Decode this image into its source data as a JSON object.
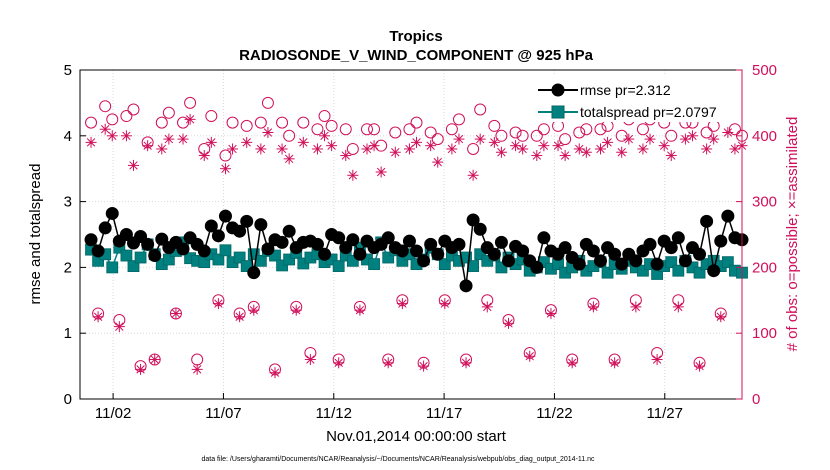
{
  "chart_data": {
    "type": "line",
    "title": "Tropics",
    "subtitle": "RADIOSONDE_V_WIND_COMPONENT @ 925 hPa",
    "xlabel": "Nov.01,2014 00:00:00 start",
    "ylabel": "rmse and totalspread",
    "y2label": "# of obs: o=possible; ×=assimilated",
    "xlim": [
      0.5,
      30.5
    ],
    "ylim": [
      0,
      5
    ],
    "y2lim": [
      0,
      500
    ],
    "x_ticks": [
      {
        "x": 2,
        "label": "11/02"
      },
      {
        "x": 7,
        "label": "11/07"
      },
      {
        "x": 12,
        "label": "11/12"
      },
      {
        "x": 17,
        "label": "11/17"
      },
      {
        "x": 22,
        "label": "11/22"
      },
      {
        "x": 27,
        "label": "11/27"
      }
    ],
    "y_ticks": [
      "0",
      "1",
      "2",
      "3",
      "4",
      "5"
    ],
    "y2_ticks": [
      "0",
      "100",
      "200",
      "300",
      "400",
      "500"
    ],
    "legend_position": "top-right",
    "series": [
      {
        "name": "rmse",
        "legend": "rmse pr=2.312",
        "axis": "left",
        "marker": "filled-circle",
        "color": "#000000",
        "values": [
          2.42,
          2.25,
          2.6,
          2.82,
          2.4,
          2.5,
          2.37,
          2.47,
          2.35,
          2.18,
          2.43,
          2.3,
          2.38,
          2.28,
          2.45,
          2.35,
          2.25,
          2.63,
          2.48,
          2.78,
          2.6,
          2.55,
          2.7,
          1.92,
          2.65,
          2.28,
          2.42,
          2.38,
          2.55,
          2.3,
          2.38,
          2.4,
          2.35,
          2.2,
          2.5,
          2.45,
          2.3,
          2.42,
          2.2,
          2.4,
          2.3,
          2.35,
          2.45,
          2.3,
          2.25,
          2.4,
          2.25,
          2.1,
          2.35,
          2.2,
          2.4,
          2.3,
          2.35,
          1.72,
          2.72,
          2.58,
          2.3,
          2.2,
          2.38,
          2.1,
          2.32,
          2.25,
          2.1,
          2.0,
          2.45,
          2.25,
          2.2,
          2.3,
          2.15,
          2.05,
          2.35,
          2.25,
          2.1,
          2.3,
          2.2,
          2.05,
          2.2,
          2.1,
          2.25,
          2.35,
          2.05,
          2.4,
          2.3,
          2.45,
          2.1,
          2.3,
          2.2,
          2.7,
          1.95,
          2.4,
          2.78,
          2.45,
          2.42
        ]
      },
      {
        "name": "totalspread",
        "legend": "totalspread pr=2.0797",
        "axis": "left",
        "marker": "filled-square",
        "color": "#00807f",
        "values": [
          2.27,
          2.1,
          2.2,
          2.0,
          2.3,
          2.18,
          2.02,
          2.15,
          2.35,
          2.2,
          2.05,
          2.12,
          2.25,
          2.38,
          2.14,
          2.1,
          2.08,
          2.2,
          2.12,
          2.26,
          2.08,
          2.15,
          2.02,
          2.2,
          2.1,
          2.25,
          2.18,
          2.03,
          2.12,
          2.22,
          2.06,
          2.15,
          2.2,
          2.08,
          2.12,
          2.02,
          2.18,
          2.1,
          2.3,
          2.12,
          2.05,
          2.38,
          2.15,
          2.26,
          2.1,
          2.2,
          2.05,
          2.12,
          2.3,
          2.2,
          2.05,
          2.18,
          2.1,
          2.15,
          2.02,
          2.2,
          2.1,
          2.18,
          2.0,
          2.15,
          2.05,
          2.12,
          1.95,
          2.0,
          2.08,
          1.98,
          2.05,
          1.92,
          2.0,
          2.1,
          1.95,
          2.02,
          2.08,
          1.92,
          2.05,
          1.98,
          2.1,
          2.0,
          1.95,
          2.05,
          1.9,
          2.02,
          2.08,
          1.95,
          2.1,
          2.0,
          1.92,
          2.05,
          2.1,
          2.02,
          2.08,
          1.95,
          1.92
        ]
      },
      {
        "name": "obs possible",
        "axis": "right",
        "marker": "open-circle",
        "color": "#d0105a",
        "values": [
          420,
          130,
          445,
          425,
          120,
          430,
          440,
          50,
          390,
          60,
          420,
          435,
          130,
          420,
          450,
          60,
          380,
          430,
          150,
          370,
          420,
          130,
          415,
          140,
          420,
          450,
          45,
          420,
          400,
          140,
          420,
          70,
          410,
          430,
          415,
          60,
          410,
          380,
          140,
          410,
          410,
          385,
          60,
          405,
          150,
          410,
          420,
          55,
          405,
          395,
          150,
          410,
          425,
          60,
          380,
          440,
          150,
          415,
          400,
          120,
          405,
          400,
          70,
          400,
          410,
          135,
          415,
          395,
          60,
          405,
          410,
          145,
          410,
          415,
          60,
          400,
          425,
          150,
          410,
          425,
          70,
          420,
          400,
          150,
          420,
          420,
          55,
          405,
          415,
          130,
          440,
          410,
          400
        ]
      },
      {
        "name": "obs assimilated",
        "axis": "right",
        "marker": "asterisk",
        "color": "#d0105a",
        "values": [
          390,
          125,
          410,
          400,
          110,
          400,
          355,
          45,
          385,
          60,
          380,
          395,
          130,
          395,
          425,
          45,
          370,
          390,
          145,
          350,
          380,
          125,
          390,
          135,
          380,
          405,
          40,
          380,
          365,
          135,
          390,
          60,
          380,
          400,
          385,
          55,
          370,
          340,
          135,
          380,
          385,
          345,
          55,
          375,
          145,
          380,
          390,
          50,
          385,
          360,
          145,
          380,
          395,
          55,
          340,
          395,
          140,
          390,
          375,
          115,
          385,
          380,
          65,
          370,
          385,
          130,
          385,
          370,
          55,
          380,
          375,
          140,
          380,
          390,
          55,
          375,
          395,
          140,
          380,
          395,
          60,
          385,
          370,
          140,
          395,
          400,
          50,
          380,
          395,
          125,
          405,
          380,
          385
        ]
      }
    ]
  },
  "footer": "data file: /Users/gharamti/Documents/NCAR/Reanalysis/~/Documents/NCAR/Reanalysis/webpub/obs_diag_output_2014-11.nc"
}
